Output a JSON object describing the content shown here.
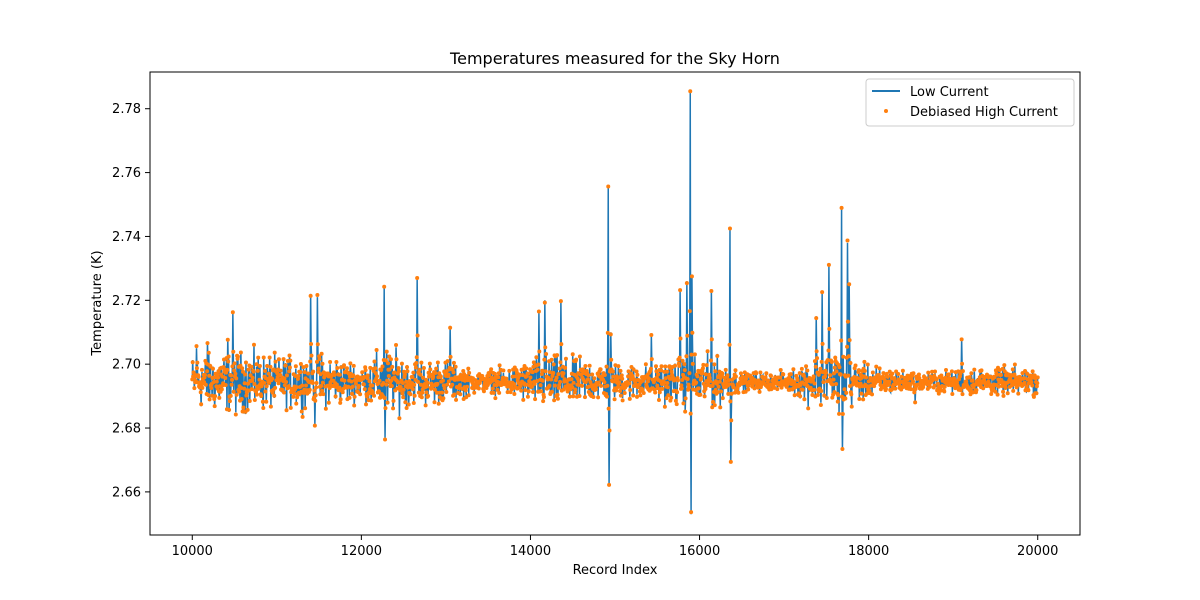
{
  "chart_data": {
    "type": "line",
    "title": "Temperatures measured for the Sky Horn",
    "xlabel": "Record Index",
    "ylabel": "Temperature (K)",
    "xlim": [
      9500,
      20500
    ],
    "ylim": [
      2.6465,
      2.7915
    ],
    "xticks": [
      10000,
      12000,
      14000,
      16000,
      18000,
      20000
    ],
    "yticks": [
      2.66,
      2.68,
      2.7,
      2.72,
      2.74,
      2.76,
      2.78
    ],
    "ytick_labels": [
      "2.66",
      "2.68",
      "2.70",
      "2.72",
      "2.74",
      "2.76",
      "2.78"
    ],
    "grid": false,
    "legend": "top-right",
    "baseline": 2.6945,
    "noise_envelope": [
      [
        10000,
        0.012
      ],
      [
        10500,
        0.014
      ],
      [
        11000,
        0.011
      ],
      [
        11500,
        0.012
      ],
      [
        12000,
        0.008
      ],
      [
        12300,
        0.015
      ],
      [
        12600,
        0.01
      ],
      [
        13000,
        0.01
      ],
      [
        13400,
        0.004
      ],
      [
        13800,
        0.007
      ],
      [
        14200,
        0.012
      ],
      [
        14600,
        0.01
      ],
      [
        15000,
        0.008
      ],
      [
        15400,
        0.007
      ],
      [
        15800,
        0.012
      ],
      [
        16200,
        0.011
      ],
      [
        16500,
        0.004
      ],
      [
        17000,
        0.004
      ],
      [
        17300,
        0.01
      ],
      [
        17600,
        0.016
      ],
      [
        17900,
        0.008
      ],
      [
        18500,
        0.004
      ],
      [
        19000,
        0.005
      ],
      [
        19500,
        0.006
      ],
      [
        20000,
        0.006
      ]
    ],
    "peaks": [
      {
        "x": 10050,
        "y": 2.705
      },
      {
        "x": 10180,
        "y": 2.707
      },
      {
        "x": 10420,
        "y": 2.708
      },
      {
        "x": 10480,
        "y": 2.716
      },
      {
        "x": 11400,
        "y": 2.722
      },
      {
        "x": 11480,
        "y": 2.721
      },
      {
        "x": 11450,
        "y": 2.681
      },
      {
        "x": 12270,
        "y": 2.724
      },
      {
        "x": 12280,
        "y": 2.677
      },
      {
        "x": 12660,
        "y": 2.727
      },
      {
        "x": 13050,
        "y": 2.712
      },
      {
        "x": 14100,
        "y": 2.716
      },
      {
        "x": 14170,
        "y": 2.72
      },
      {
        "x": 14360,
        "y": 2.72
      },
      {
        "x": 14920,
        "y": 2.756
      },
      {
        "x": 14930,
        "y": 2.662
      },
      {
        "x": 14950,
        "y": 2.71
      },
      {
        "x": 15430,
        "y": 2.709
      },
      {
        "x": 15770,
        "y": 2.723
      },
      {
        "x": 15850,
        "y": 2.726
      },
      {
        "x": 15890,
        "y": 2.785
      },
      {
        "x": 15900,
        "y": 2.653
      },
      {
        "x": 15910,
        "y": 2.728
      },
      {
        "x": 16140,
        "y": 2.723
      },
      {
        "x": 16360,
        "y": 2.742
      },
      {
        "x": 16370,
        "y": 2.669
      },
      {
        "x": 17380,
        "y": 2.715
      },
      {
        "x": 17450,
        "y": 2.722
      },
      {
        "x": 17530,
        "y": 2.731
      },
      {
        "x": 17680,
        "y": 2.749
      },
      {
        "x": 17690,
        "y": 2.673
      },
      {
        "x": 17750,
        "y": 2.738
      },
      {
        "x": 17770,
        "y": 2.725
      },
      {
        "x": 19100,
        "y": 2.708
      },
      {
        "x": 18550,
        "y": 2.688
      }
    ],
    "series": [
      {
        "name": "Low Current",
        "kind": "line",
        "color": "#1f77b4"
      },
      {
        "name": "Debiased High Current",
        "kind": "scatter",
        "color": "#ff7f0e"
      }
    ]
  }
}
